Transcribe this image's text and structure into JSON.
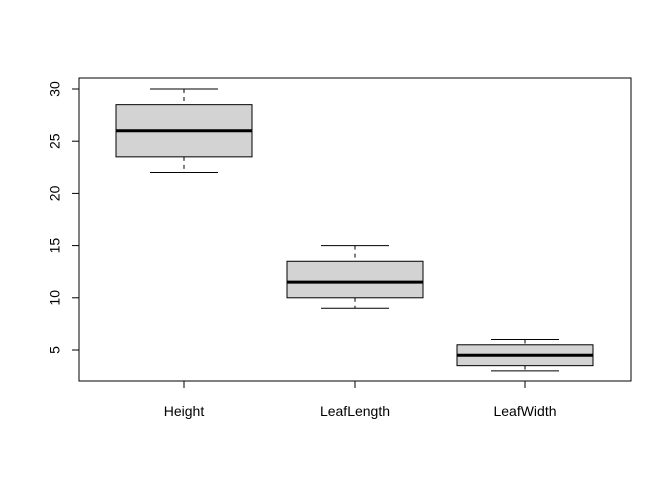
{
  "chart_data": {
    "type": "boxplot",
    "title": "",
    "xlabel": "",
    "ylabel": "",
    "ylim": [
      2,
      31
    ],
    "yticks": [
      5,
      10,
      15,
      20,
      25,
      30
    ],
    "categories": [
      "Height",
      "LeafLength",
      "LeafWidth"
    ],
    "boxes": [
      {
        "category": "Height",
        "min": 22,
        "q1": 23.5,
        "median": 26,
        "q3": 28.5,
        "max": 30
      },
      {
        "category": "LeafLength",
        "min": 9,
        "q1": 10,
        "median": 11.5,
        "q3": 13.5,
        "max": 15
      },
      {
        "category": "LeafWidth",
        "min": 3,
        "q1": 3.5,
        "median": 4.5,
        "q3": 5.5,
        "max": 6
      }
    ],
    "box_fill": "#d3d3d3",
    "grid": false
  }
}
